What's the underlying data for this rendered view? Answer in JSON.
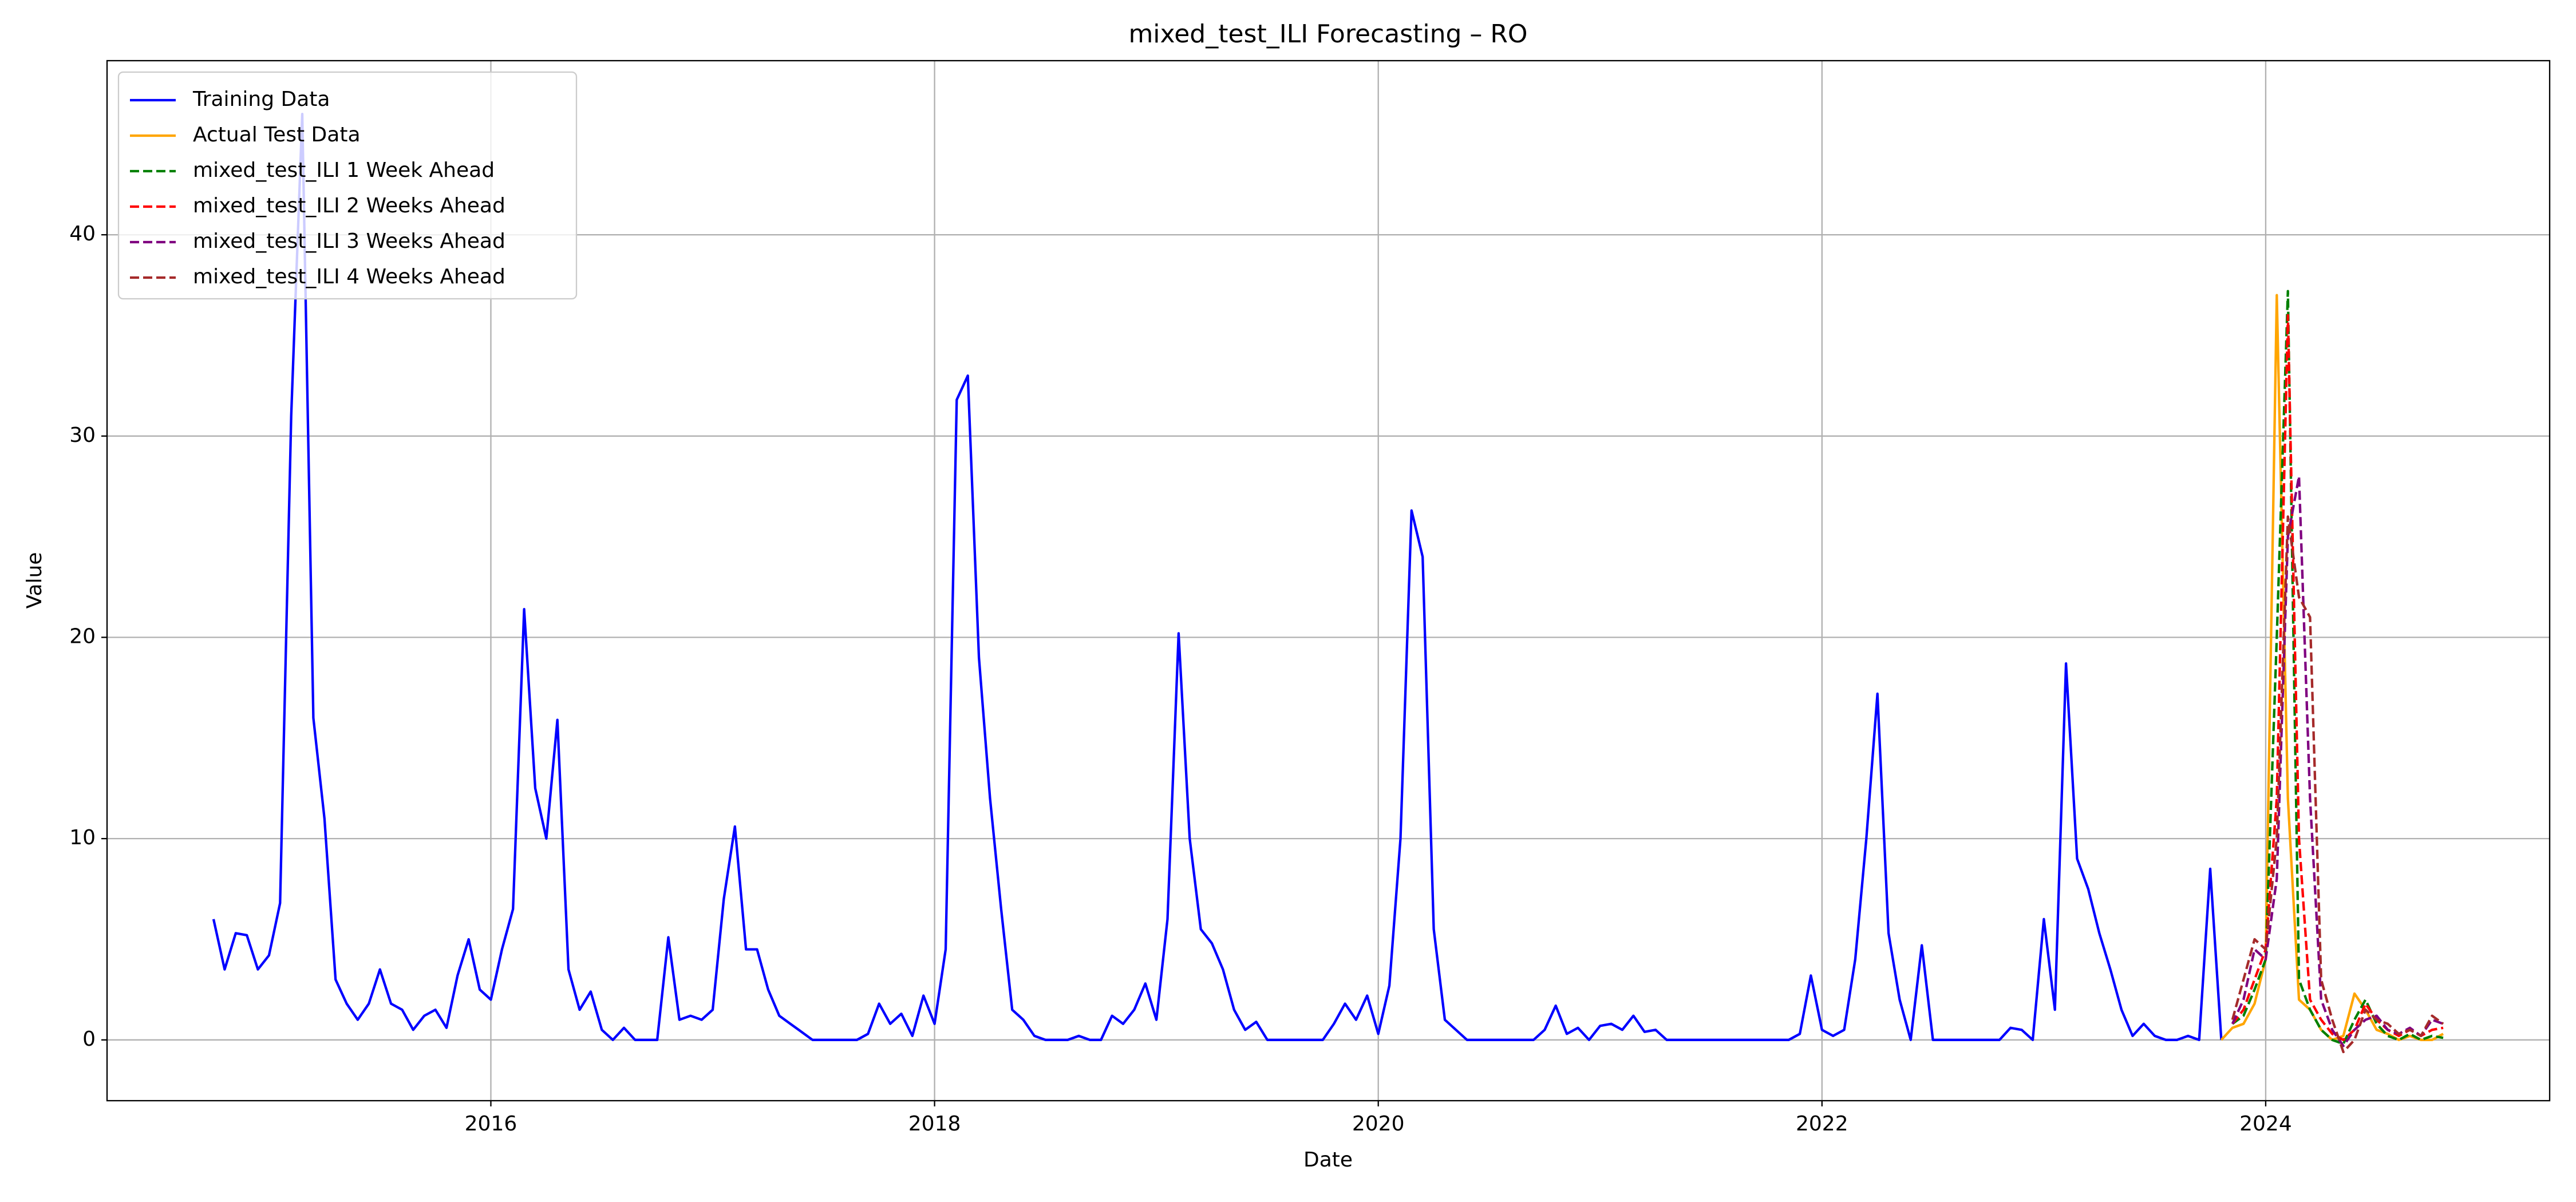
{
  "chart_data": {
    "type": "line",
    "title": "mixed_test_ILI Forecasting – RO",
    "xlabel": "Date",
    "ylabel": "Value",
    "xlim": [
      2014.27,
      2025.28
    ],
    "xticks": [
      2016,
      2018,
      2020,
      2022,
      2024
    ],
    "ylim": [
      -3.02,
      48.65
    ],
    "yticks": [
      0,
      10,
      20,
      30,
      40
    ],
    "grid": true,
    "legend": "upper left",
    "series": [
      {
        "name": "Training Data",
        "color": "#0000ff",
        "dashed": false,
        "x": [
          2014.75,
          2014.8,
          2014.85,
          2014.9,
          2014.95,
          2015,
          2015.05,
          2015.1,
          2015.15,
          2015.2,
          2015.25,
          2015.3,
          2015.35,
          2015.4,
          2015.45,
          2015.5,
          2015.55,
          2015.6,
          2015.65,
          2015.7,
          2015.75,
          2015.8,
          2015.85,
          2015.9,
          2015.95,
          2016,
          2016.05,
          2016.1,
          2016.15,
          2016.2,
          2016.25,
          2016.3,
          2016.35,
          2016.4,
          2016.45,
          2016.5,
          2016.55,
          2016.6,
          2016.65,
          2016.7,
          2016.75,
          2016.8,
          2016.85,
          2016.9,
          2016.95,
          2017,
          2017.05,
          2017.1,
          2017.15,
          2017.2,
          2017.25,
          2017.3,
          2017.35,
          2017.4,
          2017.45,
          2017.5,
          2017.55,
          2017.6,
          2017.65,
          2017.7,
          2017.75,
          2017.8,
          2017.85,
          2017.9,
          2017.95,
          2018,
          2018.05,
          2018.1,
          2018.15,
          2018.2,
          2018.25,
          2018.3,
          2018.35,
          2018.4,
          2018.45,
          2018.5,
          2018.55,
          2018.6,
          2018.65,
          2018.7,
          2018.75,
          2018.8,
          2018.85,
          2018.9,
          2018.95,
          2019,
          2019.05,
          2019.1,
          2019.15,
          2019.2,
          2019.25,
          2019.3,
          2019.35,
          2019.4,
          2019.45,
          2019.5,
          2019.55,
          2019.6,
          2019.65,
          2019.7,
          2019.75,
          2019.8,
          2019.85,
          2019.9,
          2019.95,
          2020,
          2020.05,
          2020.1,
          2020.15,
          2020.2,
          2020.25,
          2020.3,
          2020.35,
          2020.4,
          2020.45,
          2020.5,
          2020.55,
          2020.6,
          2020.65,
          2020.7,
          2020.75,
          2020.8,
          2020.85,
          2020.9,
          2020.95,
          2021,
          2021.05,
          2021.1,
          2021.15,
          2021.2,
          2021.25,
          2021.3,
          2021.35,
          2021.4,
          2021.45,
          2021.5,
          2021.55,
          2021.6,
          2021.65,
          2021.7,
          2021.75,
          2021.8,
          2021.85,
          2021.9,
          2021.95,
          2022,
          2022.05,
          2022.1,
          2022.15,
          2022.2,
          2022.25,
          2022.3,
          2022.35,
          2022.4,
          2022.45,
          2022.5,
          2022.55,
          2022.6,
          2022.65,
          2022.7,
          2022.75,
          2022.8,
          2022.85,
          2022.9,
          2022.95,
          2023,
          2023.05,
          2023.1,
          2023.15,
          2023.2,
          2023.25,
          2023.3,
          2023.35,
          2023.4,
          2023.45,
          2023.5,
          2023.55,
          2023.6,
          2023.65,
          2023.7,
          2023.75,
          2023.8
        ],
        "values": [
          6,
          3.5,
          5.3,
          5.2,
          3.5,
          4.2,
          6.8,
          31,
          46,
          16,
          11,
          3,
          1.8,
          1,
          1.8,
          3.5,
          1.8,
          1.5,
          0.5,
          1.2,
          1.5,
          0.6,
          3.2,
          5,
          2.5,
          2,
          4.5,
          6.5,
          21.4,
          12.5,
          10,
          15.9,
          3.5,
          1.5,
          2.4,
          0.5,
          0,
          0.6,
          0,
          0,
          0,
          5.1,
          1,
          1.2,
          1,
          1.5,
          7,
          10.6,
          4.5,
          4.5,
          2.5,
          1.2,
          0.8,
          0.4,
          0,
          0,
          0,
          0,
          0,
          0.3,
          1.8,
          0.8,
          1.3,
          0.2,
          2.2,
          0.8,
          4.5,
          31.8,
          33,
          19,
          12,
          6.5,
          1.5,
          1,
          0.2,
          0,
          0,
          0,
          0.2,
          0,
          0,
          1.2,
          0.8,
          1.5,
          2.8,
          1,
          6,
          20.2,
          10,
          5.5,
          4.8,
          3.5,
          1.5,
          0.5,
          0.9,
          0,
          0,
          0,
          0,
          0,
          0,
          0.8,
          1.8,
          1,
          2.2,
          0.3,
          2.7,
          10,
          26.3,
          24,
          5.5,
          1,
          0.5,
          0,
          0,
          0,
          0,
          0,
          0,
          0,
          0.5,
          1.7,
          0.3,
          0.6,
          0,
          0.7,
          0.8,
          0.5,
          1.2,
          0.4,
          0.5,
          0,
          0,
          0,
          0,
          0,
          0,
          0,
          0,
          0,
          0,
          0,
          0,
          0.3,
          3.2,
          0.5,
          0.2,
          0.5,
          4,
          10,
          17.2,
          5.3,
          2,
          0,
          4.7,
          0,
          0,
          0,
          0,
          0,
          0,
          0,
          0.6,
          0.5,
          0,
          6,
          1.5,
          18.7,
          9,
          7.5,
          5.3,
          3.5,
          1.5,
          0.2,
          0.8,
          0.2,
          0,
          0,
          0.2,
          0,
          8.5,
          0
        ]
      },
      {
        "name": "Actual Test Data",
        "color": "#ffa500",
        "dashed": false,
        "x": [
          2023.8,
          2023.85,
          2023.9,
          2023.95,
          2024,
          2024.05,
          2024.1,
          2024.15,
          2024.2,
          2024.25,
          2024.3,
          2024.35,
          2024.4,
          2024.45,
          2024.5,
          2024.55,
          2024.6,
          2024.65,
          2024.7,
          2024.75,
          2024.8
        ],
        "values": [
          0,
          0.6,
          0.8,
          1.8,
          4,
          37,
          12,
          2,
          1.5,
          0.5,
          0,
          0.2,
          2.3,
          1.5,
          0.5,
          0.3,
          0,
          0.2,
          0,
          0,
          0.3
        ]
      },
      {
        "name": "mixed_test_ILI 1 Week Ahead",
        "color": "#008000",
        "dashed": true,
        "x": [
          2023.85,
          2023.9,
          2023.95,
          2024,
          2024.05,
          2024.1,
          2024.15,
          2024.2,
          2024.25,
          2024.3,
          2024.35,
          2024.4,
          2024.45,
          2024.5,
          2024.55,
          2024.6,
          2024.65,
          2024.7,
          2024.75,
          2024.8
        ],
        "values": [
          0.8,
          1.2,
          2.5,
          4,
          20,
          37.2,
          3,
          1.5,
          0.5,
          0,
          -0.2,
          1,
          2,
          0.8,
          0.2,
          0,
          0.3,
          0,
          0.2,
          0.1
        ]
      },
      {
        "name": "mixed_test_ILI 2 Weeks Ahead",
        "color": "#ff0000",
        "dashed": true,
        "x": [
          2023.85,
          2023.9,
          2023.95,
          2024,
          2024.05,
          2024.1,
          2024.15,
          2024.2,
          2024.25,
          2024.3,
          2024.35,
          2024.4,
          2024.45,
          2024.5,
          2024.55,
          2024.6,
          2024.65,
          2024.7,
          2024.75,
          2024.8
        ],
        "values": [
          0.8,
          1.5,
          3,
          4.5,
          12,
          36,
          10,
          2,
          1,
          0.3,
          0,
          0.5,
          1.8,
          1,
          0.5,
          0.2,
          0.5,
          0.2,
          0.5,
          0.6
        ]
      },
      {
        "name": "mixed_test_ILI 3 Weeks Ahead",
        "color": "#800080",
        "dashed": true,
        "x": [
          2023.85,
          2023.9,
          2023.95,
          2024,
          2024.05,
          2024.1,
          2024.15,
          2024.2,
          2024.25,
          2024.3,
          2024.35,
          2024.4,
          2024.45,
          2024.5,
          2024.55,
          2024.6,
          2024.65,
          2024.7,
          2024.75,
          2024.8
        ],
        "values": [
          0.8,
          2,
          4.5,
          4,
          8,
          25,
          28,
          12,
          2,
          0.5,
          -0.3,
          0.5,
          1,
          1.2,
          0.5,
          0.3,
          0.6,
          0.2,
          1,
          0.8
        ]
      },
      {
        "name": "mixed_test_ILI 4 Weeks Ahead",
        "color": "#a52a2a",
        "dashed": true,
        "x": [
          2023.85,
          2023.9,
          2023.95,
          2024,
          2024.05,
          2024.1,
          2024.15,
          2024.2,
          2024.25,
          2024.3,
          2024.35,
          2024.4,
          2024.45,
          2024.5,
          2024.55,
          2024.6,
          2024.65,
          2024.7,
          2024.75,
          2024.8
        ],
        "values": [
          1,
          3,
          5,
          4.5,
          10,
          26,
          22,
          21,
          3,
          1,
          -0.6,
          0,
          1.5,
          1,
          0.8,
          0.3,
          0.5,
          0.2,
          1.2,
          0.8
        ]
      }
    ]
  }
}
